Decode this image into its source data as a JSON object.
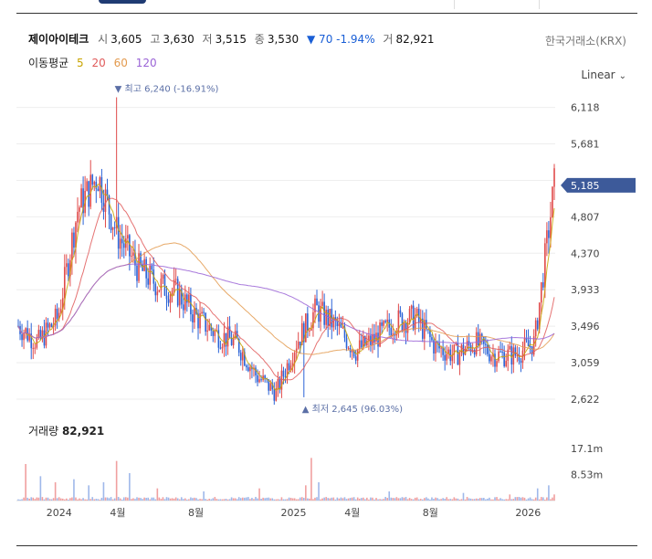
{
  "quote": {
    "name": "제이아이테크",
    "open_label": "시",
    "open": "3,605",
    "high_label": "고",
    "high": "3,630",
    "low_label": "저",
    "low": "3,515",
    "close_label": "종",
    "close": "3,530",
    "change": "▼ 70 -1.94%",
    "volume_label": "거",
    "volume": "82,921"
  },
  "exchange": "한국거래소(KRX)",
  "scale_mode": "Linear",
  "ma_legend": {
    "label": "이동평균",
    "periods": [
      {
        "name": "5",
        "color": "#c8a400"
      },
      {
        "name": "20",
        "color": "#e05a5a"
      },
      {
        "name": "60",
        "color": "#e39a4e"
      },
      {
        "name": "120",
        "color": "#9a63d6"
      }
    ]
  },
  "price_badge": "5,185",
  "annotations": {
    "high": "▼ 최고 6,240 (-16.91%)",
    "low": "▲ 최저 2,645 (96.03%)"
  },
  "volume_panel": {
    "label": "거래량",
    "value": "82,921"
  },
  "colors": {
    "up": "#e04a4a",
    "down": "#2b63d6",
    "badge": "#3d5a9a",
    "grid": "#eeeeee"
  },
  "chart_data": {
    "type": "candlestick",
    "price_axis": {
      "ticks": [
        6118,
        5681,
        5244,
        4807,
        4370,
        3933,
        3496,
        3059,
        2622
      ],
      "tick_labels": [
        "6,118",
        "5,681",
        "",
        "4,807",
        "4,370",
        "3,933",
        "3,496",
        "3,059",
        "2,622"
      ],
      "range": [
        2480,
        6420
      ]
    },
    "volume_axis": {
      "tick_labels": [
        "17.1m",
        "8.53m"
      ],
      "ticks": [
        17100000,
        8530000
      ],
      "max": 21000000
    },
    "x_tick_labels": [
      "2024",
      "4월",
      "8월",
      "2025",
      "4월",
      "8월",
      "2026"
    ],
    "price_path": [
      {
        "t": "2023-11",
        "p": 3500
      },
      {
        "t": "2023-12",
        "p": 3300
      },
      {
        "t": "2024-01",
        "p": 3600
      },
      {
        "t": "2024-02",
        "p": 4900
      },
      {
        "t": "2024-03",
        "p": 5300
      },
      {
        "t": "2024-04",
        "p": 4600
      },
      {
        "t": "2024-05",
        "p": 4200
      },
      {
        "t": "2024-06",
        "p": 4000
      },
      {
        "t": "2024-07",
        "p": 3900
      },
      {
        "t": "2024-08",
        "p": 3600
      },
      {
        "t": "2024-09",
        "p": 3400
      },
      {
        "t": "2024-10",
        "p": 3300
      },
      {
        "t": "2024-11",
        "p": 2900
      },
      {
        "t": "2024-12",
        "p": 2700
      },
      {
        "t": "2025-01",
        "p": 3300
      },
      {
        "t": "2025-02",
        "p": 3700
      },
      {
        "t": "2025-03",
        "p": 3500
      },
      {
        "t": "2025-04",
        "p": 3200
      },
      {
        "t": "2025-05",
        "p": 3350
      },
      {
        "t": "2025-06",
        "p": 3550
      },
      {
        "t": "2025-07",
        "p": 3600
      },
      {
        "t": "2025-08",
        "p": 3250
      },
      {
        "t": "2025-09",
        "p": 3150
      },
      {
        "t": "2025-10",
        "p": 3300
      },
      {
        "t": "2025-11",
        "p": 3150
      },
      {
        "t": "2025-12",
        "p": 3150
      },
      {
        "t": "2026-01",
        "p": 3300
      },
      {
        "t": "2026-02",
        "p": 5185
      }
    ]
  }
}
